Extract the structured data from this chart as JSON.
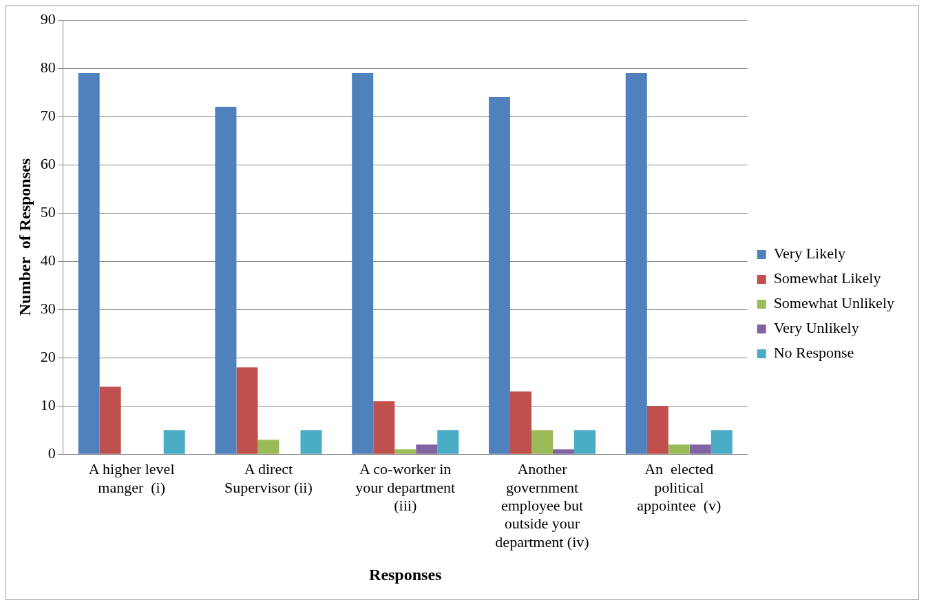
{
  "chart_data": {
    "type": "bar",
    "xlabel": "Responses",
    "ylabel": "Number  of Responses",
    "categories": [
      "A higher level manger  (i)",
      "A direct Supervisor (ii)",
      "A co-worker in your department (iii)",
      "Another government employee but outside your department (iv)",
      "An  elected political appointee  (v)"
    ],
    "series": [
      {
        "name": "Very Likely",
        "color": "#4f81bd",
        "values": [
          79,
          72,
          79,
          74,
          79
        ]
      },
      {
        "name": "Somewhat Likely",
        "color": "#c0504d",
        "values": [
          14,
          18,
          11,
          13,
          10
        ]
      },
      {
        "name": "Somewhat Unlikely",
        "color": "#9bbb59",
        "values": [
          0,
          3,
          1,
          5,
          2
        ]
      },
      {
        "name": "Very Unlikely",
        "color": "#8064a2",
        "values": [
          0,
          0,
          2,
          1,
          2
        ]
      },
      {
        "name": "No Response",
        "color": "#4bacc6",
        "values": [
          5,
          5,
          5,
          5,
          5
        ]
      }
    ],
    "ylim": [
      0,
      90
    ],
    "yticks": [
      0,
      10,
      20,
      30,
      40,
      50,
      60,
      70,
      80,
      90
    ],
    "grid": "y",
    "legend": "right"
  }
}
